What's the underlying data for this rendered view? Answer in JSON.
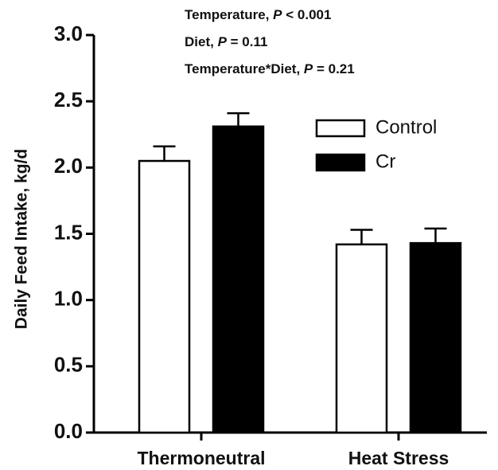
{
  "chart_data": {
    "type": "bar",
    "annotations": [
      [
        "Temperature,  ",
        "P",
        " < 0.001"
      ],
      [
        "Diet, ",
        "P",
        " = 0.11"
      ],
      [
        "Temperature*Diet, ",
        "P",
        " = 0.21"
      ]
    ],
    "y_label": "Daily Feed  Intake, kg/d",
    "categories": [
      "Thermoneutral",
      "Heat Stress"
    ],
    "series": [
      {
        "name": "Control",
        "color": "#ffffff",
        "values": [
          2.05,
          1.42
        ],
        "error": [
          0.11,
          0.11
        ]
      },
      {
        "name": "Cr",
        "color": "#000000",
        "values": [
          2.31,
          1.43
        ],
        "error": [
          0.1,
          0.11
        ]
      }
    ],
    "ylim": [
      0,
      3
    ],
    "yticks": [
      {
        "value": 0,
        "label": "0.0"
      },
      0.5,
      {
        "value": 1,
        "label": "1.0"
      },
      1.5,
      {
        "value": 2,
        "label": "2.0"
      },
      2.5,
      {
        "value": 3,
        "label": "3.0"
      }
    ],
    "legend": "upper right"
  }
}
